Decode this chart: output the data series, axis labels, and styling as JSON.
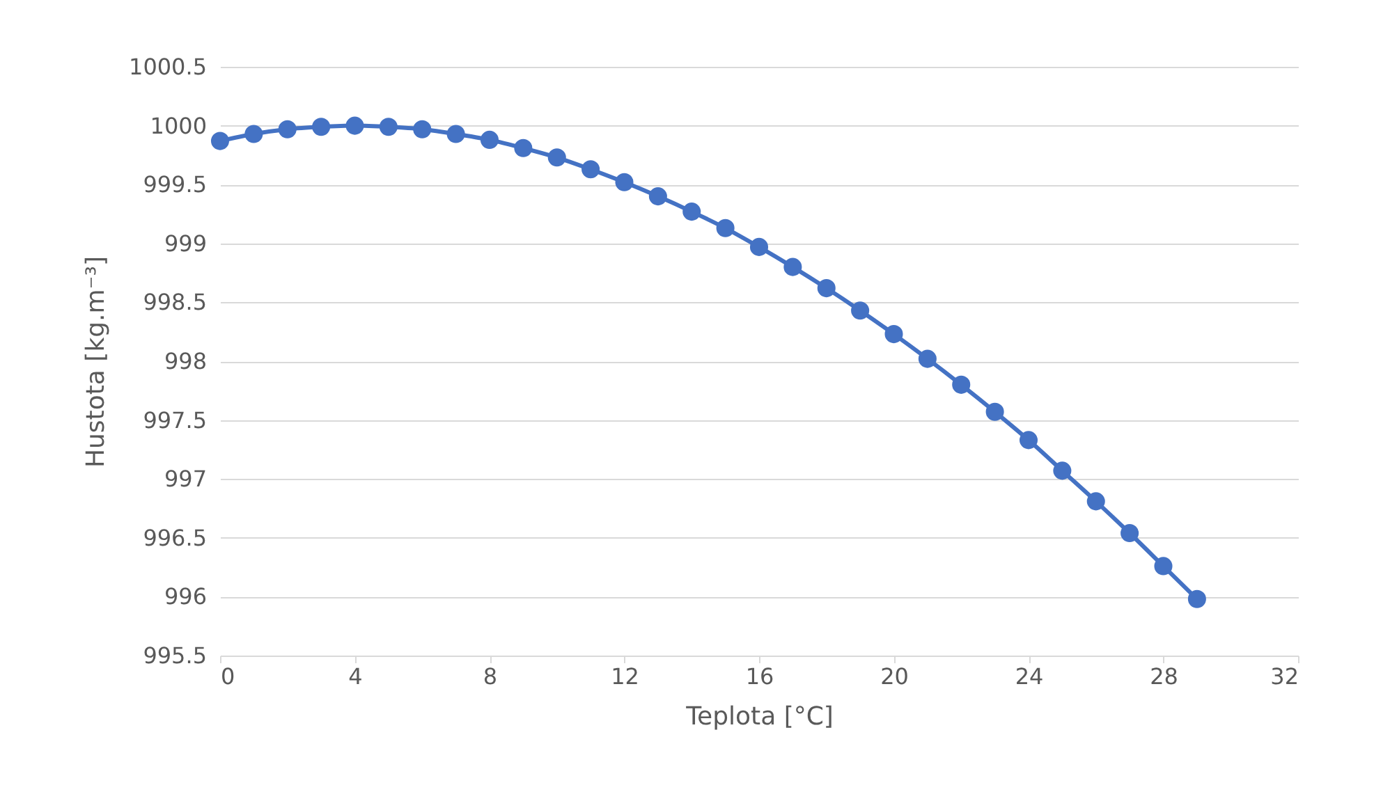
{
  "chart_data": {
    "type": "line",
    "xlabel": "Teplota [°C]",
    "ylabel": "Hustota [kg.m⁻³]",
    "x": [
      0,
      1,
      2,
      3,
      4,
      5,
      6,
      7,
      8,
      9,
      10,
      11,
      12,
      13,
      14,
      15,
      16,
      17,
      18,
      19,
      20,
      21,
      22,
      23,
      24,
      25,
      26,
      27,
      28,
      29
    ],
    "series": [
      {
        "color": "#4472c4",
        "values": [
          999.87,
          999.93,
          999.97,
          999.99,
          1000.0,
          999.99,
          999.97,
          999.93,
          999.88,
          999.81,
          999.73,
          999.63,
          999.52,
          999.4,
          999.27,
          999.13,
          998.97,
          998.8,
          998.62,
          998.43,
          998.23,
          998.02,
          997.8,
          997.57,
          997.33,
          997.07,
          996.81,
          996.54,
          996.26,
          995.98
        ]
      }
    ],
    "xlim": [
      0,
      32
    ],
    "xticks": [
      0,
      4,
      8,
      12,
      16,
      20,
      24,
      28,
      32
    ],
    "ylim": [
      995.5,
      1000.5
    ],
    "yticks": [
      995.5,
      996,
      996.5,
      997,
      997.5,
      998,
      998.5,
      999,
      999.5,
      1000,
      1000.5
    ],
    "grid": "y",
    "marker": "circle",
    "line_style": "solid"
  }
}
